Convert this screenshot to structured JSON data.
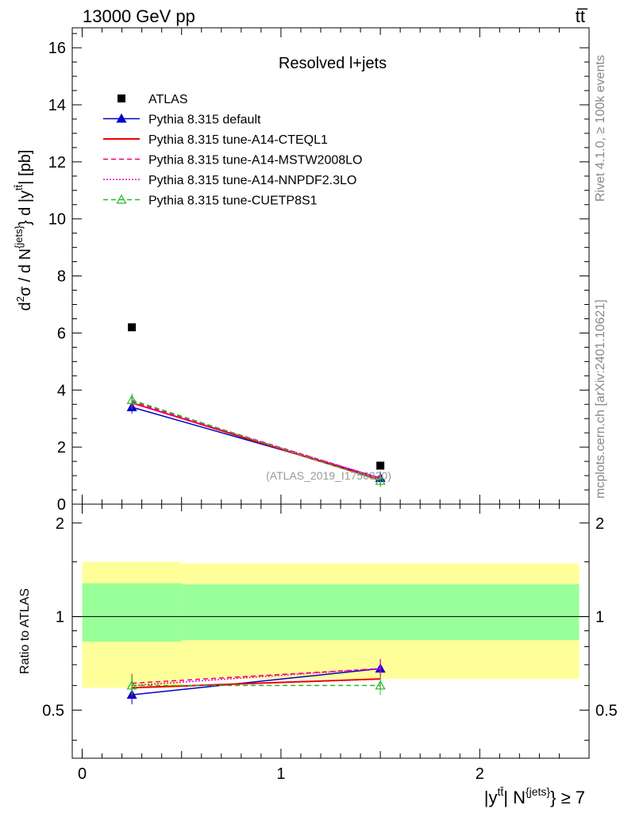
{
  "header": {
    "left": "13000 GeV pp",
    "right": "tt̅"
  },
  "side_labels": {
    "rivet": "Rivet 4.1.0, ≥ 100k events",
    "mcplots": "mcplots.cern.ch [arXiv:2401.10621]"
  },
  "chart_data": [
    {
      "type": "line",
      "panel": "main",
      "title": "Resolved l+jets",
      "watermark": "(ATLAS_2019_I1750330)",
      "ylabel": "d²σ / d N^{jets} d |y^{tt̅}| [pb]",
      "xlim": [
        -0.05,
        2.55
      ],
      "ylim": [
        0,
        16.7
      ],
      "yticks": [
        0,
        2,
        4,
        6,
        8,
        10,
        12,
        14,
        16
      ],
      "ytick_labels": [
        "0",
        "2",
        "4",
        "6",
        "8",
        "10",
        "12",
        "14",
        "16"
      ],
      "legend_position": "top-left",
      "data": {
        "name": "ATLAS",
        "x": [
          0.25,
          1.5
        ],
        "y": [
          6.2,
          1.35
        ],
        "color": "#000000"
      },
      "series": [
        {
          "name": "Pythia 8.315 default",
          "x": [
            0.25,
            1.5
          ],
          "y": [
            3.4,
            0.92
          ],
          "color": "#0000cc",
          "style": "solid-triangle"
        },
        {
          "name": "Pythia 8.315 tune-A14-CTEQL1",
          "x": [
            0.25,
            1.5
          ],
          "y": [
            3.55,
            0.85
          ],
          "color": "#ee0000",
          "style": "solid"
        },
        {
          "name": "Pythia 8.315 tune-A14-MSTW2008LO",
          "x": [
            0.25,
            1.5
          ],
          "y": [
            3.6,
            0.9
          ],
          "color": "#ee0077",
          "style": "dashed"
        },
        {
          "name": "Pythia 8.315 tune-A14-NNPDF2.3LO",
          "x": [
            0.25,
            1.5
          ],
          "y": [
            3.55,
            0.92
          ],
          "color": "#ee00cc",
          "style": "dotted"
        },
        {
          "name": "Pythia 8.315 tune-CUETP8S1",
          "x": [
            0.25,
            1.5
          ],
          "y": [
            3.65,
            0.82
          ],
          "color": "#22bb22",
          "style": "dashed-open-triangle"
        }
      ]
    },
    {
      "type": "line",
      "panel": "ratio",
      "ylabel": "Ratio to ATLAS",
      "xlabel": "|y^{tt̅}| N^{jets} ≥ 7",
      "xlim": [
        -0.05,
        2.55
      ],
      "ylim": [
        0.35,
        2.3
      ],
      "yticks": [
        0.5,
        1,
        2
      ],
      "ytick_labels": [
        "0.5",
        "1",
        "2"
      ],
      "xticks": [
        0,
        1,
        2
      ],
      "xtick_labels": [
        "0",
        "1",
        "2"
      ],
      "bands": [
        {
          "x": [
            0,
            0.5
          ],
          "stat_syst": [
            0.59,
            1.5
          ],
          "stat": [
            0.83,
            1.28
          ]
        },
        {
          "x": [
            0.5,
            2.5
          ],
          "stat_syst": [
            0.63,
            1.48
          ],
          "stat": [
            0.84,
            1.27
          ]
        }
      ],
      "band_colors": {
        "total": "#ffff99",
        "stat": "#99ff99"
      },
      "series": [
        {
          "name": "Pythia 8.315 default",
          "x": [
            0.25,
            1.5
          ],
          "y": [
            0.56,
            0.68
          ],
          "color": "#0000cc",
          "style": "solid-triangle"
        },
        {
          "name": "Pythia 8.315 tune-A14-CTEQL1",
          "x": [
            0.25,
            1.5
          ],
          "y": [
            0.59,
            0.63
          ],
          "color": "#ee0000",
          "style": "solid"
        },
        {
          "name": "Pythia 8.315 tune-A14-MSTW2008LO",
          "x": [
            0.25,
            1.5
          ],
          "y": [
            0.61,
            0.68
          ],
          "color": "#ee0077",
          "style": "dashed"
        },
        {
          "name": "Pythia 8.315 tune-A14-NNPDF2.3LO",
          "x": [
            0.25,
            1.5
          ],
          "y": [
            0.6,
            0.68
          ],
          "color": "#ee00cc",
          "style": "dotted"
        },
        {
          "name": "Pythia 8.315 tune-CUETP8S1",
          "x": [
            0.25,
            1.5
          ],
          "y": [
            0.6,
            0.6
          ],
          "color": "#22bb22",
          "style": "dashed-open-triangle"
        }
      ]
    }
  ]
}
